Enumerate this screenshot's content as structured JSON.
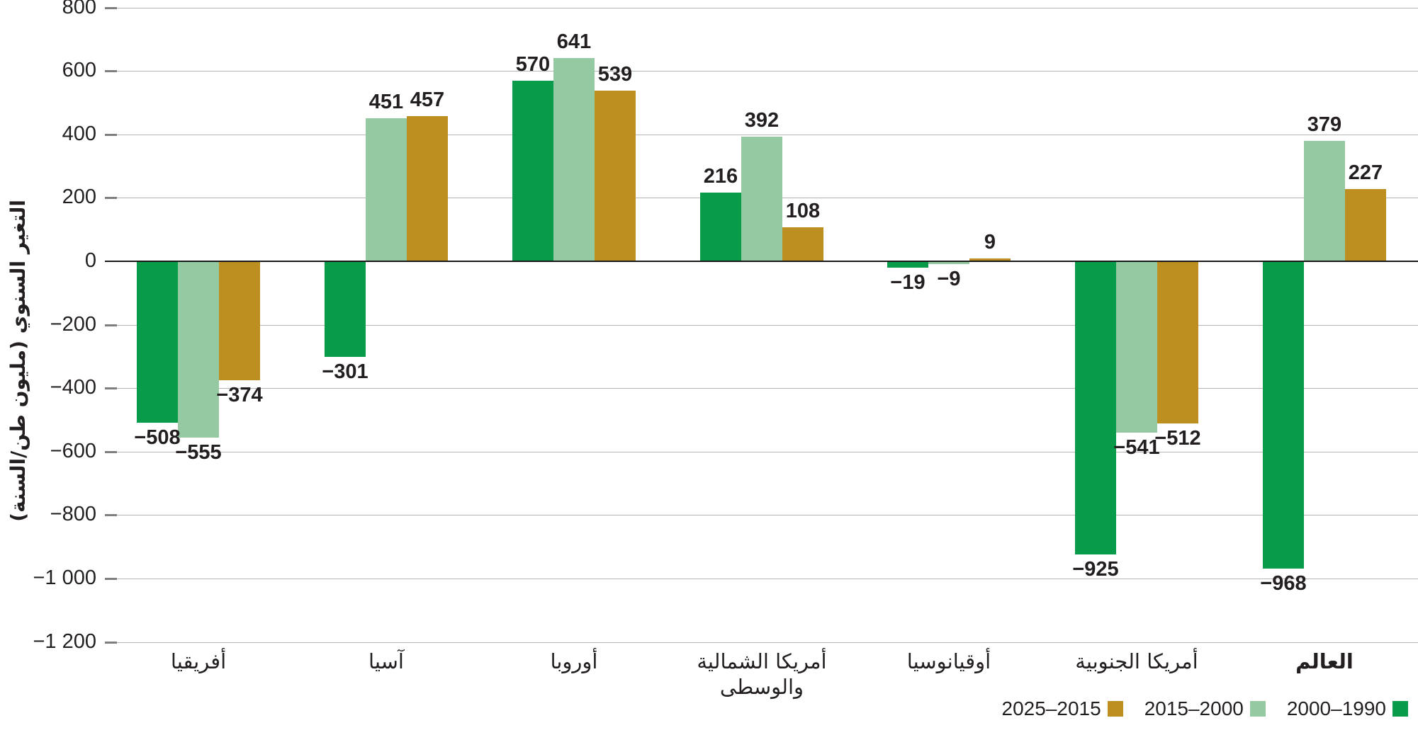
{
  "chart_data": {
    "type": "bar",
    "ylabel": "التغير السنوي (مليون طن/السنة)",
    "ylim": [
      -1200,
      800
    ],
    "grid": true,
    "legend_position": "bottom-right",
    "yticks": [
      {
        "v": 800,
        "label": "800"
      },
      {
        "v": 600,
        "label": "600"
      },
      {
        "v": 400,
        "label": "400"
      },
      {
        "v": 200,
        "label": "200"
      },
      {
        "v": 0,
        "label": "0"
      },
      {
        "v": -200,
        "label": "−200"
      },
      {
        "v": -400,
        "label": "−400"
      },
      {
        "v": -600,
        "label": "−600"
      },
      {
        "v": -800,
        "label": "−800"
      },
      {
        "v": -1000,
        "label": "−1 000"
      },
      {
        "v": -1200,
        "label": "−1 200"
      }
    ],
    "categories": [
      {
        "label": "أفريقيا",
        "bold": false
      },
      {
        "label": "آسيا",
        "bold": false
      },
      {
        "label": "أوروبا",
        "bold": false
      },
      {
        "label": "أمريكا الشمالية والوسطى",
        "bold": false
      },
      {
        "label": "أوقيانوسيا",
        "bold": false
      },
      {
        "label": "أمريكا الجنوبية",
        "bold": false
      },
      {
        "label": "العالم",
        "bold": true
      }
    ],
    "series": [
      {
        "name": "2000–1990",
        "color": "#089b49",
        "values": [
          -508,
          -301,
          570,
          216,
          -19,
          -925,
          -968
        ],
        "labels": [
          "−508",
          "−301",
          "570",
          "216",
          "−19",
          "−925",
          "−968"
        ]
      },
      {
        "name": "2015–2000",
        "color": "#95c9a2",
        "values": [
          -555,
          451,
          641,
          392,
          -9,
          -541,
          379
        ],
        "labels": [
          "−555",
          "451",
          "641",
          "392",
          "−9",
          "−541",
          "379"
        ]
      },
      {
        "name": "2025–2015",
        "color": "#bd8f21",
        "values": [
          -374,
          457,
          539,
          108,
          9,
          -512,
          227
        ],
        "labels": [
          "−374",
          "457",
          "539",
          "108",
          "9",
          "−512",
          "227"
        ]
      }
    ],
    "legend": [
      {
        "label": "2025–2015",
        "color": "#bd8f21"
      },
      {
        "label": "2015–2000",
        "color": "#95c9a2"
      },
      {
        "label": "2000–1990",
        "color": "#089b49"
      }
    ]
  },
  "colors": {
    "grid": "#b5b5b5",
    "zero_line": "#1a1a1a",
    "tick": "#7f7f7f",
    "text": "#231f20"
  }
}
